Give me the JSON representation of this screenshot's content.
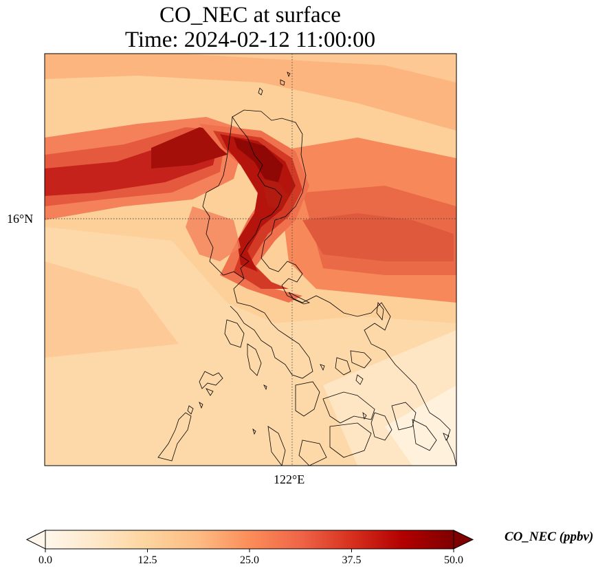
{
  "title_line1": "CO_NEC at surface",
  "title_line2": "Time: 2024-02-12 11:00:00",
  "map": {
    "lat_ticks": [
      {
        "value": 16,
        "label": "16°N"
      }
    ],
    "lon_ticks": [
      {
        "value": 122,
        "label": "122°E"
      }
    ],
    "gridlines": "dotted",
    "coastlines": true
  },
  "colorbar": {
    "label": "CO_NEC (ppbv)",
    "min": 0.0,
    "max": 50.0,
    "ticks": [
      "0.0",
      "12.5",
      "25.0",
      "37.5",
      "50.0"
    ],
    "colormap": "OrRd",
    "extend": "both",
    "colors": [
      "#fff7ec",
      "#fee8c8",
      "#fdd49e",
      "#fdbb84",
      "#fc8d59",
      "#ef6548",
      "#d7301f",
      "#b30000",
      "#7f0000"
    ]
  }
}
